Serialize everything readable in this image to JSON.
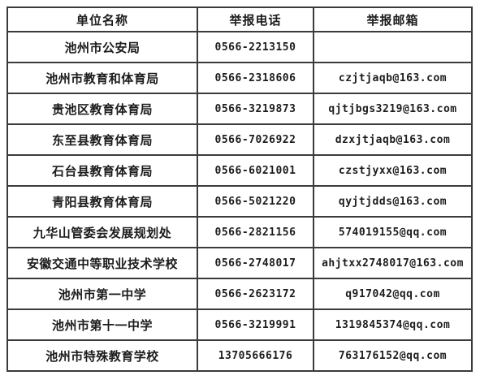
{
  "table": {
    "headers": {
      "unit_name": "单位名称",
      "report_phone": "举报电话",
      "report_email": "举报邮箱"
    },
    "rows": [
      {
        "name": "池州市公安局",
        "phone": "0566-2213150",
        "email": ""
      },
      {
        "name": "池州市教育和体育局",
        "phone": "0566-2318606",
        "email": "czjtjaqb@163.com"
      },
      {
        "name": "贵池区教育体育局",
        "phone": "0566-3219873",
        "email": "qjtjbgs3219@163.com"
      },
      {
        "name": "东至县教育体育局",
        "phone": "0566-7026922",
        "email": "dzxjtjaqb@163.com"
      },
      {
        "name": "石台县教育体育局",
        "phone": "0566-6021001",
        "email": "czstjyxx@163.com"
      },
      {
        "name": "青阳县教育体育局",
        "phone": "0566-5021220",
        "email": "qyjtjdds@163.com"
      },
      {
        "name": "九华山管委会发展规划处",
        "phone": "0566-2821156",
        "email": "574019155@qq.com"
      },
      {
        "name": "安徽交通中等职业技术学校",
        "phone": "0566-2748017",
        "email": "ahjtxx2748017@163.com"
      },
      {
        "name": "池州市第一中学",
        "phone": "0566-2623172",
        "email": "q917042@qq.com"
      },
      {
        "name": "池州市第十一中学",
        "phone": "0566-3219991",
        "email": "1319845374@qq.com"
      },
      {
        "name": "池州市特殊教育学校",
        "phone": "13705666176",
        "email": "763176152@qq.com"
      }
    ],
    "colors": {
      "border": "#3b3b3b",
      "text": "#1c1c1c",
      "background": "#ffffff"
    }
  }
}
